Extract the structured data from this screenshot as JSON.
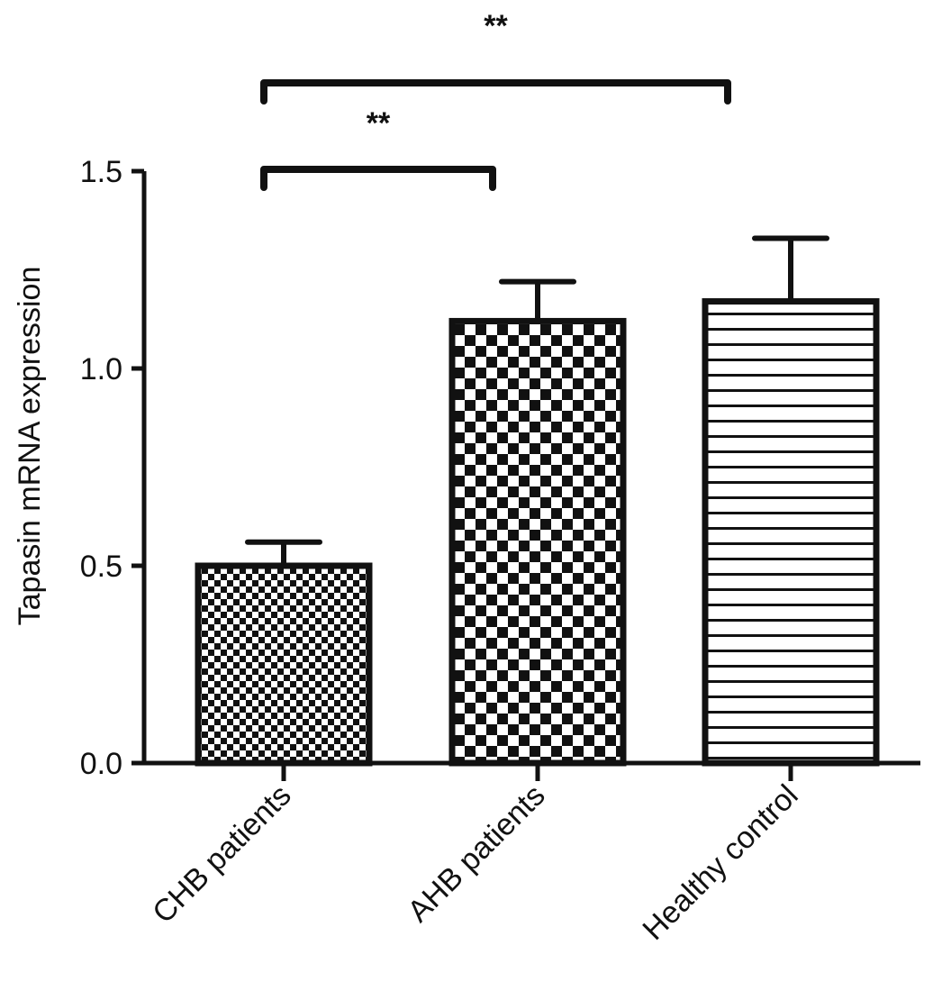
{
  "chart_data": {
    "type": "bar",
    "title": "",
    "xlabel": "",
    "ylabel": "Tapasin mRNA expression",
    "categories": [
      "CHB patients",
      "AHB patients",
      "Healthy control"
    ],
    "values": [
      0.5,
      1.12,
      1.17
    ],
    "errors": [
      0.06,
      0.1,
      0.16
    ],
    "patterns": [
      "fine-checker",
      "coarse-checker",
      "horizontal-lines"
    ],
    "ylim": [
      0,
      1.5
    ],
    "yticks": [
      "0.0",
      "0.5",
      "1.0",
      "1.5"
    ],
    "ytick_values": [
      0,
      0.5,
      1.0,
      1.5
    ],
    "grid": false,
    "legend": "none",
    "significance": [
      {
        "from": 0,
        "to": 1,
        "label": "**"
      },
      {
        "from": 0,
        "to": 2,
        "label": "**"
      }
    ],
    "colors": {
      "stroke": "#111111",
      "fill": "#ffffff"
    }
  }
}
